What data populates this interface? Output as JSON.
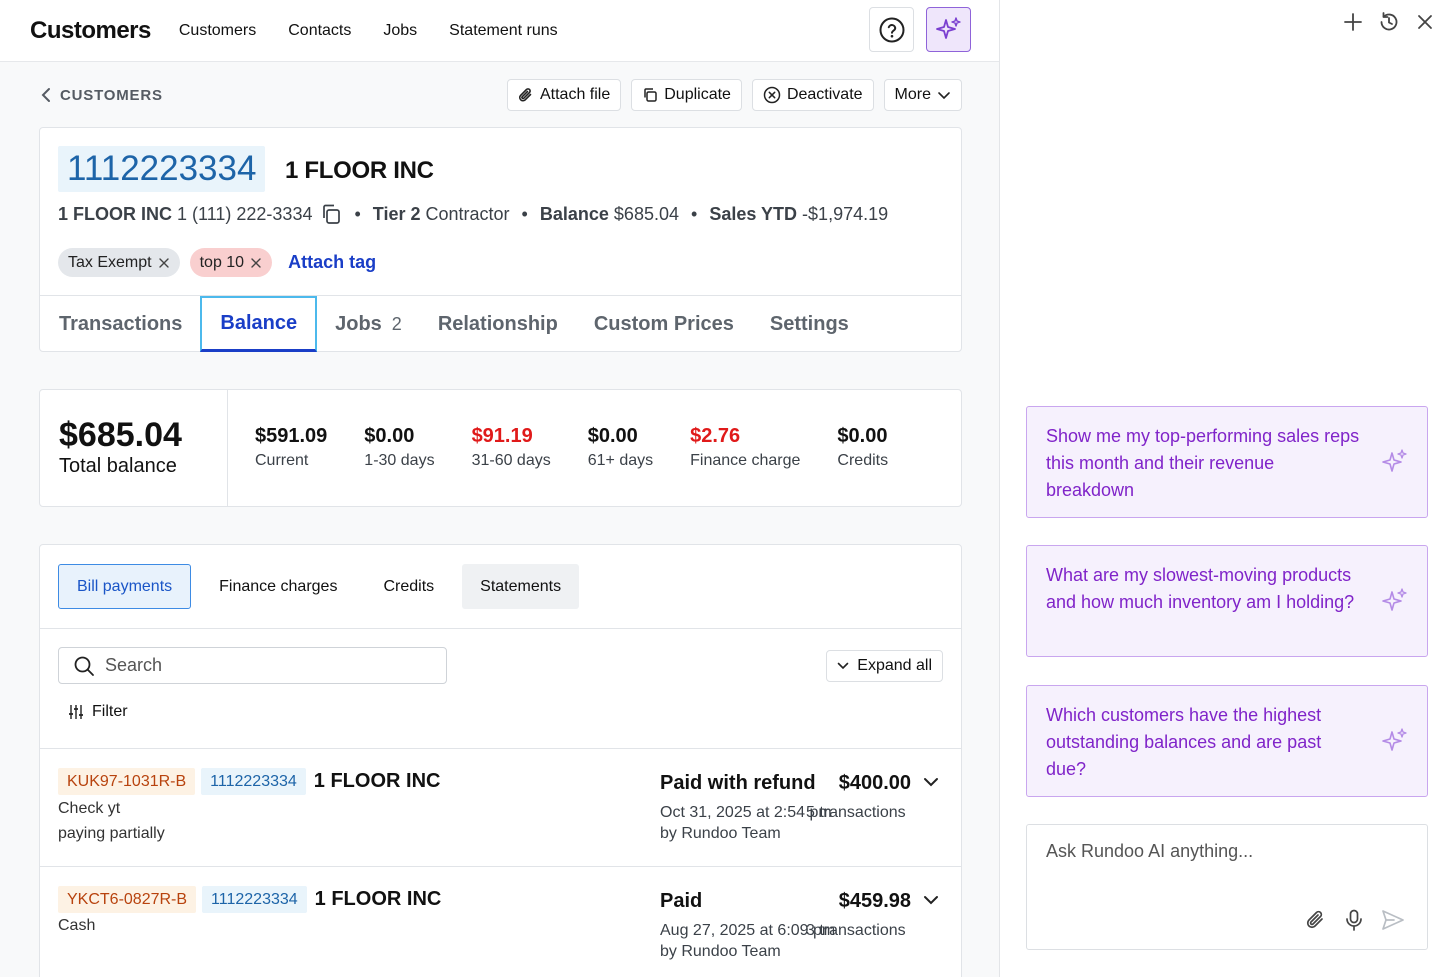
{
  "app": {
    "title": "Customers",
    "nav": [
      "Customers",
      "Contacts",
      "Jobs",
      "Statement runs"
    ]
  },
  "breadcrumb": {
    "label": "CUSTOMERS"
  },
  "actions": {
    "attach_file": "Attach file",
    "duplicate": "Duplicate",
    "deactivate": "Deactivate",
    "more": "More"
  },
  "customer": {
    "id": "1112223334",
    "name": "1 FLOOR INC",
    "meta_name": "1 FLOOR INC",
    "phone": "1 (111) 222-3334",
    "tier_label": "Tier 2",
    "tier_type": "Contractor",
    "balance_label": "Balance",
    "balance_value": "$685.04",
    "sales_label": "Sales YTD",
    "sales_value": "-$1,974.19",
    "tags": [
      "Tax Exempt",
      "top 10"
    ],
    "attach_tag": "Attach tag"
  },
  "tabs": {
    "transactions": "Transactions",
    "balance": "Balance",
    "jobs": "Jobs",
    "jobs_count": "2",
    "relationship": "Relationship",
    "custom_prices": "Custom Prices",
    "settings": "Settings"
  },
  "balance": {
    "total": "$685.04",
    "total_label": "Total balance",
    "buckets": [
      {
        "value": "$591.09",
        "label": "Current",
        "color": "#111111"
      },
      {
        "value": "$0.00",
        "label": "1-30 days",
        "color": "#111111"
      },
      {
        "value": "$91.19",
        "label": "31-60 days",
        "color": "#e01a1a"
      },
      {
        "value": "$0.00",
        "label": "61+ days",
        "color": "#111111"
      },
      {
        "value": "$2.76",
        "label": "Finance charge",
        "color": "#e01a1a"
      },
      {
        "value": "$0.00",
        "label": "Credits",
        "color": "#111111"
      }
    ]
  },
  "subtabs": {
    "bill_payments": "Bill payments",
    "finance_charges": "Finance charges",
    "credits": "Credits",
    "statements": "Statements"
  },
  "list": {
    "search_placeholder": "Search",
    "expand_all": "Expand all",
    "filter": "Filter",
    "rows": [
      {
        "ref": "KUK97-1031R-B",
        "cust_id": "1112223334",
        "name": "1 FLOOR INC",
        "desc1": "Check yt",
        "desc2": "paying partially",
        "status": "Paid with refund",
        "amount": "$400.00",
        "date": "Oct 31, 2025 at 2:54 pm",
        "tx": "5 transactions",
        "by": "by Rundoo Team"
      },
      {
        "ref": "YKCT6-0827R-B",
        "cust_id": "1112223334",
        "name": "1 FLOOR INC",
        "desc1": "Cash",
        "desc2": "",
        "status": "Paid",
        "amount": "$459.98",
        "date": "Aug 27, 2025 at 6:09 pm",
        "tx": "3 transactions",
        "by": "by Rundoo Team"
      }
    ]
  },
  "assistant": {
    "suggestions": [
      "Show me my top-performing sales reps this month and their revenue breakdown",
      "What are my slowest-moving products and how much inventory am I holding?",
      "Which customers have the highest outstanding balances and are past due?"
    ],
    "input_placeholder": "Ask Rundoo AI anything...",
    "accent": "#8024c9"
  }
}
